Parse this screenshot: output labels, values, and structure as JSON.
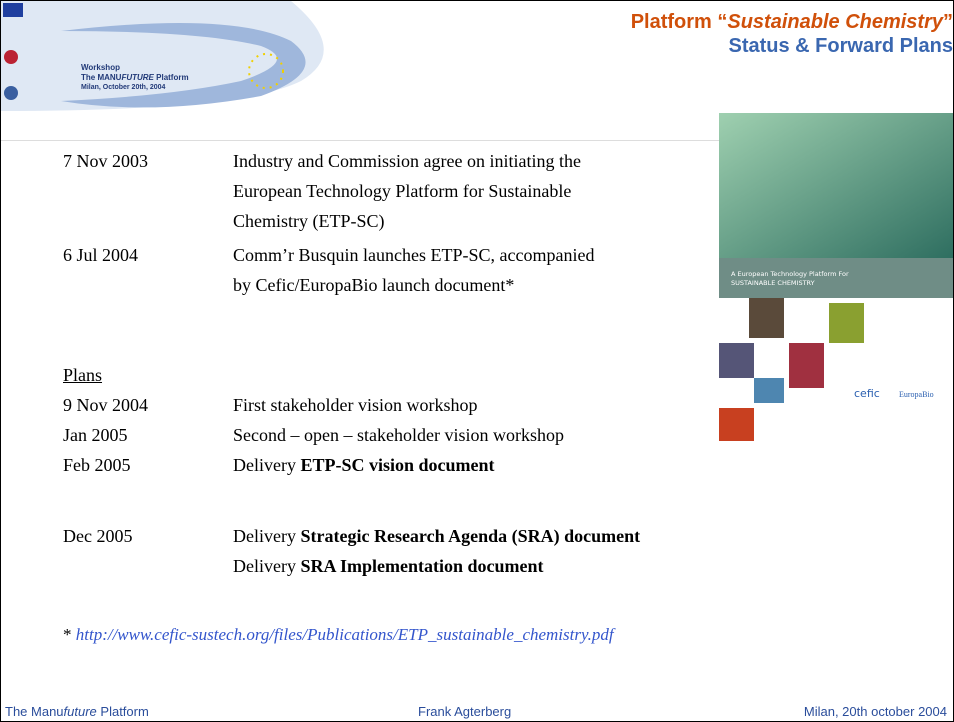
{
  "header": {
    "workshop": "Workshop",
    "platform": [
      {
        "text": "The MANU"
      },
      {
        "text": "FUTURE",
        "italic": true
      },
      {
        "text": " Platform"
      }
    ],
    "date": "Milan, October 20th, 2004",
    "title": [
      {
        "text": "Platform “"
      },
      {
        "text": "Sustainable Chemistry",
        "italic": true
      },
      {
        "text": "”"
      }
    ],
    "subtitle": "Status & Forward Plans"
  },
  "entries": [
    {
      "date": "7 Nov 2003",
      "text": "Industry and Commission agree on initiating the European Technology Platform for Sustainable Chemistry (ETP-SC)"
    },
    {
      "date": "6 Jul 2004",
      "text": "Comm’r Busquin launches ETP-SC, accompanied by Cefic/EuropaBio launch document*"
    }
  ],
  "plans": {
    "heading": "Plans",
    "items": [
      {
        "date": "9 Nov 2004",
        "parts": [
          {
            "text": "First stakeholder vision workshop"
          }
        ]
      },
      {
        "date": "Jan 2005",
        "parts": [
          {
            "text": "Second – open – stakeholder vision workshop"
          }
        ]
      },
      {
        "date": "Feb 2005",
        "parts": [
          {
            "text": "Delivery "
          },
          {
            "text": "ETP-SC vision document",
            "bold": true
          }
        ]
      },
      {
        "date": "Dec 2005",
        "parts": [
          {
            "text": "Delivery "
          },
          {
            "text": "Strategic Research Agenda (SRA) document",
            "bold": true
          }
        ]
      },
      {
        "parts": [
          {
            "text": "Delivery "
          },
          {
            "text": "SRA Implementation document",
            "bold": true
          }
        ]
      }
    ]
  },
  "footnote": {
    "mark": "*",
    "link": "http://www.cefic-sustech.org/files/Publications/ETP_sustainable_chemistry.pdf"
  },
  "cover": {
    "line1": "A European Technology Platform For",
    "line2": "SUSTAINABLE CHEMISTRY",
    "logo1": "cefic",
    "logo2": "EuropaBio"
  },
  "footer": {
    "left": [
      {
        "text": "The Manu"
      },
      {
        "text": "future",
        "italic": true
      },
      {
        "text": " Platform"
      }
    ],
    "center": "Frank Agterberg",
    "right": "Milan, 20th october 2004"
  }
}
